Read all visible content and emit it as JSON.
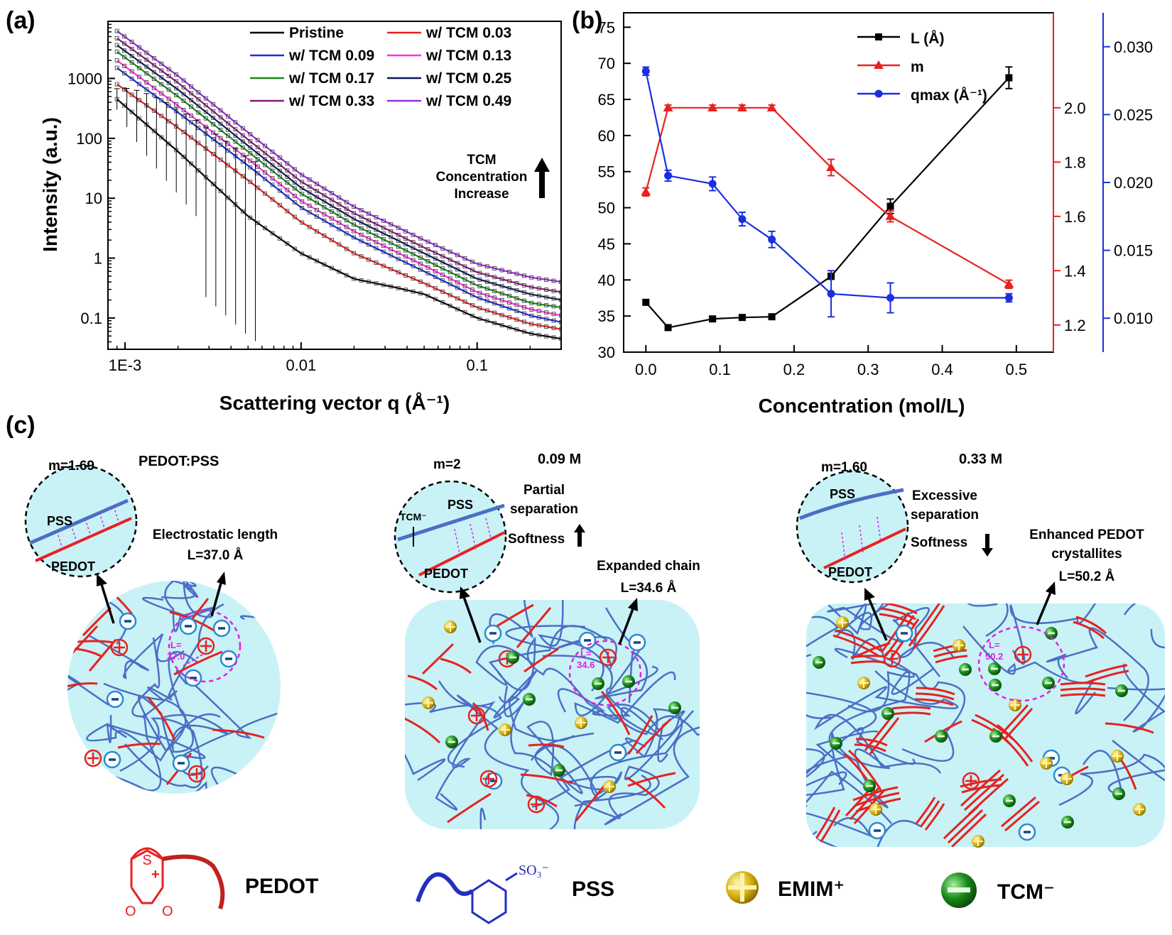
{
  "chart_data": [
    {
      "panel": "(a)",
      "type": "line",
      "xlabel": "Scattering vector q (Å⁻¹)",
      "ylabel": "Intensity (a.u.)",
      "xscale": "log",
      "yscale": "log",
      "xlim": [
        0.0008,
        0.3
      ],
      "ylim": [
        0.03,
        9000
      ],
      "x_ticks": [
        {
          "v": 0.001,
          "label": "1E-3"
        },
        {
          "v": 0.01,
          "label": "0.01"
        },
        {
          "v": 0.1,
          "label": "0.1"
        }
      ],
      "y_ticks": [
        {
          "v": 0.1,
          "label": "0.1"
        },
        {
          "v": 1,
          "label": "1"
        },
        {
          "v": 10,
          "label": "10"
        },
        {
          "v": 100,
          "label": "100"
        },
        {
          "v": 1000,
          "label": "1000"
        }
      ],
      "legend_position": "top-right",
      "annotation": [
        "TCM",
        "Concentration",
        "Increase"
      ],
      "series": [
        {
          "name": "Pristine",
          "color": "#000000",
          "points": [
            [
              0.0009,
              450
            ],
            [
              0.002,
              60
            ],
            [
              0.005,
              5
            ],
            [
              0.01,
              1.2
            ],
            [
              0.02,
              0.45
            ],
            [
              0.035,
              0.32
            ],
            [
              0.05,
              0.25
            ],
            [
              0.1,
              0.1
            ],
            [
              0.2,
              0.055
            ],
            [
              0.3,
              0.045
            ]
          ]
        },
        {
          "name": "w/ TCM 0.03",
          "color": "#e8211f",
          "points": [
            [
              0.0009,
              800
            ],
            [
              0.002,
              150
            ],
            [
              0.005,
              20
            ],
            [
              0.01,
              4
            ],
            [
              0.02,
              1.2
            ],
            [
              0.05,
              0.38
            ],
            [
              0.1,
              0.15
            ],
            [
              0.2,
              0.08
            ],
            [
              0.3,
              0.065
            ]
          ]
        },
        {
          "name": "w/ TCM 0.09",
          "color": "#1a2fe0",
          "points": [
            [
              0.0009,
              1500
            ],
            [
              0.002,
              270
            ],
            [
              0.005,
              35
            ],
            [
              0.01,
              7
            ],
            [
              0.02,
              2.2
            ],
            [
              0.05,
              0.6
            ],
            [
              0.1,
              0.22
            ],
            [
              0.2,
              0.11
            ],
            [
              0.3,
              0.085
            ]
          ]
        },
        {
          "name": "w/ TCM 0.13",
          "color": "#ff30e0",
          "points": [
            [
              0.0009,
              2000
            ],
            [
              0.002,
              350
            ],
            [
              0.005,
              45
            ],
            [
              0.01,
              9
            ],
            [
              0.02,
              2.8
            ],
            [
              0.05,
              0.75
            ],
            [
              0.1,
              0.27
            ],
            [
              0.2,
              0.14
            ],
            [
              0.3,
              0.11
            ]
          ]
        },
        {
          "name": "w/ TCM 0.17",
          "color": "#1a8a1a",
          "points": [
            [
              0.0009,
              2800
            ],
            [
              0.002,
              500
            ],
            [
              0.005,
              60
            ],
            [
              0.01,
              12
            ],
            [
              0.02,
              3.6
            ],
            [
              0.05,
              0.95
            ],
            [
              0.1,
              0.35
            ],
            [
              0.2,
              0.18
            ],
            [
              0.3,
              0.15
            ]
          ]
        },
        {
          "name": "w/ TCM 0.25",
          "color": "#0d1a5a",
          "points": [
            [
              0.0009,
              3600
            ],
            [
              0.002,
              650
            ],
            [
              0.005,
              75
            ],
            [
              0.01,
              15
            ],
            [
              0.02,
              4.5
            ],
            [
              0.05,
              1.2
            ],
            [
              0.1,
              0.45
            ],
            [
              0.2,
              0.25
            ],
            [
              0.3,
              0.2
            ]
          ]
        },
        {
          "name": "w/ TCM 0.33",
          "color": "#8a1a7a",
          "points": [
            [
              0.0009,
              4700
            ],
            [
              0.002,
              850
            ],
            [
              0.005,
              95
            ],
            [
              0.01,
              19
            ],
            [
              0.02,
              5.6
            ],
            [
              0.05,
              1.5
            ],
            [
              0.1,
              0.58
            ],
            [
              0.2,
              0.33
            ],
            [
              0.3,
              0.27
            ]
          ]
        },
        {
          "name": "w/ TCM 0.49",
          "color": "#9a2ae0",
          "points": [
            [
              0.0009,
              6200
            ],
            [
              0.002,
              1100
            ],
            [
              0.005,
              125
            ],
            [
              0.01,
              25
            ],
            [
              0.02,
              7.2
            ],
            [
              0.05,
              2
            ],
            [
              0.1,
              0.8
            ],
            [
              0.2,
              0.48
            ],
            [
              0.3,
              0.4
            ]
          ]
        }
      ]
    },
    {
      "panel": "(b)",
      "type": "line",
      "xlabel": "Concentration (mol/L)",
      "xlim": [
        -0.03,
        0.55
      ],
      "x_ticks": [
        0.0,
        0.1,
        0.2,
        0.3,
        0.4,
        0.5
      ],
      "x_tick_labels": [
        "0.0",
        "0.1",
        "0.2",
        "0.3",
        "0.4",
        "0.5"
      ],
      "y_left": {
        "lim": [
          30,
          77
        ],
        "ticks": [
          30,
          35,
          40,
          45,
          50,
          55,
          60,
          65,
          70,
          75
        ],
        "labels": [
          "30",
          "35",
          "40",
          "45",
          "50",
          "55",
          "60",
          "65",
          "70",
          "75"
        ],
        "color": "#000000"
      },
      "y_right1": {
        "lim": [
          1.1,
          2.35
        ],
        "ticks": [
          1.2,
          1.4,
          1.6,
          1.8,
          2.0
        ],
        "labels": [
          "1.2",
          "1.4",
          "1.6",
          "1.8",
          "2.0"
        ],
        "color": "#e8211f"
      },
      "y_right2": {
        "lim": [
          0.0075,
          0.0325
        ],
        "ticks": [
          0.01,
          0.015,
          0.02,
          0.025,
          0.03
        ],
        "labels": [
          "0.010",
          "0.015",
          "0.020",
          "0.025",
          "0.030"
        ],
        "color": "#1a2fe0"
      },
      "legend_position": "top-right",
      "x": [
        0.0,
        0.03,
        0.09,
        0.13,
        0.17,
        0.25,
        0.33,
        0.49
      ],
      "series": [
        {
          "name": "L (Å)",
          "axis": "left",
          "color": "#000000",
          "marker": "square",
          "values": [
            36.9,
            33.4,
            34.6,
            34.8,
            34.9,
            40.5,
            50.2,
            68.0
          ],
          "errors": [
            0.3,
            0.3,
            0.3,
            0.3,
            0.3,
            0.4,
            1.0,
            1.5
          ]
        },
        {
          "name": "m",
          "axis": "right1",
          "color": "#e8211f",
          "marker": "triangle",
          "values": [
            1.69,
            2.0,
            2.0,
            2.0,
            2.0,
            1.78,
            1.6,
            1.35
          ],
          "errors": [
            0.015,
            0.01,
            0.01,
            0.01,
            0.01,
            0.03,
            0.02,
            0.015
          ]
        },
        {
          "name": "qmax (Å⁻¹)",
          "axis": "right2",
          "color": "#1a2fe0",
          "marker": "circle",
          "values": [
            0.0282,
            0.0205,
            0.0199,
            0.0173,
            0.0158,
            0.0118,
            0.0115,
            0.0115
          ],
          "errors": [
            0.0003,
            0.0004,
            0.0005,
            0.0005,
            0.0006,
            0.0017,
            0.0011,
            0.0003
          ]
        }
      ]
    }
  ],
  "panel_c": {
    "label": "(c)",
    "states": [
      {
        "title": "PEDOT:PSS",
        "m": "m=1.69",
        "pss": "PSS",
        "pedot": "PEDOT",
        "desc": [
          "Electrostatic length",
          "L=37.0 Å"
        ],
        "inner": [
          "L=",
          "37.0"
        ]
      },
      {
        "title": "0.09 M",
        "m": "m=2",
        "pss": "PSS",
        "pedot": "PEDOT",
        "tcm": "TCM⁻",
        "desc": [
          "Partial",
          "separation",
          "Softness"
        ],
        "chain": [
          "Expanded chain",
          "L=34.6 Å"
        ],
        "inner": [
          "L=",
          "34.6"
        ]
      },
      {
        "title": "0.33 M",
        "m": "m=1.60",
        "pss": "PSS",
        "pedot": "PEDOT",
        "desc": [
          "Excessive",
          "separation",
          "Softness"
        ],
        "chain": [
          "Enhanced PEDOT",
          "crystallites",
          "L=50.2 Å"
        ],
        "inner": [
          "L=",
          "50.2"
        ]
      }
    ],
    "legend": {
      "pedot": "PEDOT",
      "s": "S",
      "o": "O",
      "pss": "PSS",
      "so3": "SO₃⁻",
      "emim": "EMIM⁺",
      "tcm": "TCM⁻"
    },
    "colors": {
      "pss_chain": "#4a6fc4",
      "pedot_chain": "#e8211f",
      "matrix": "#c8f2f6",
      "emim": "#d4b010",
      "tcm": "#1a8a1a",
      "ion_ring": "#2a8ad4",
      "length": "#e020e0"
    }
  }
}
